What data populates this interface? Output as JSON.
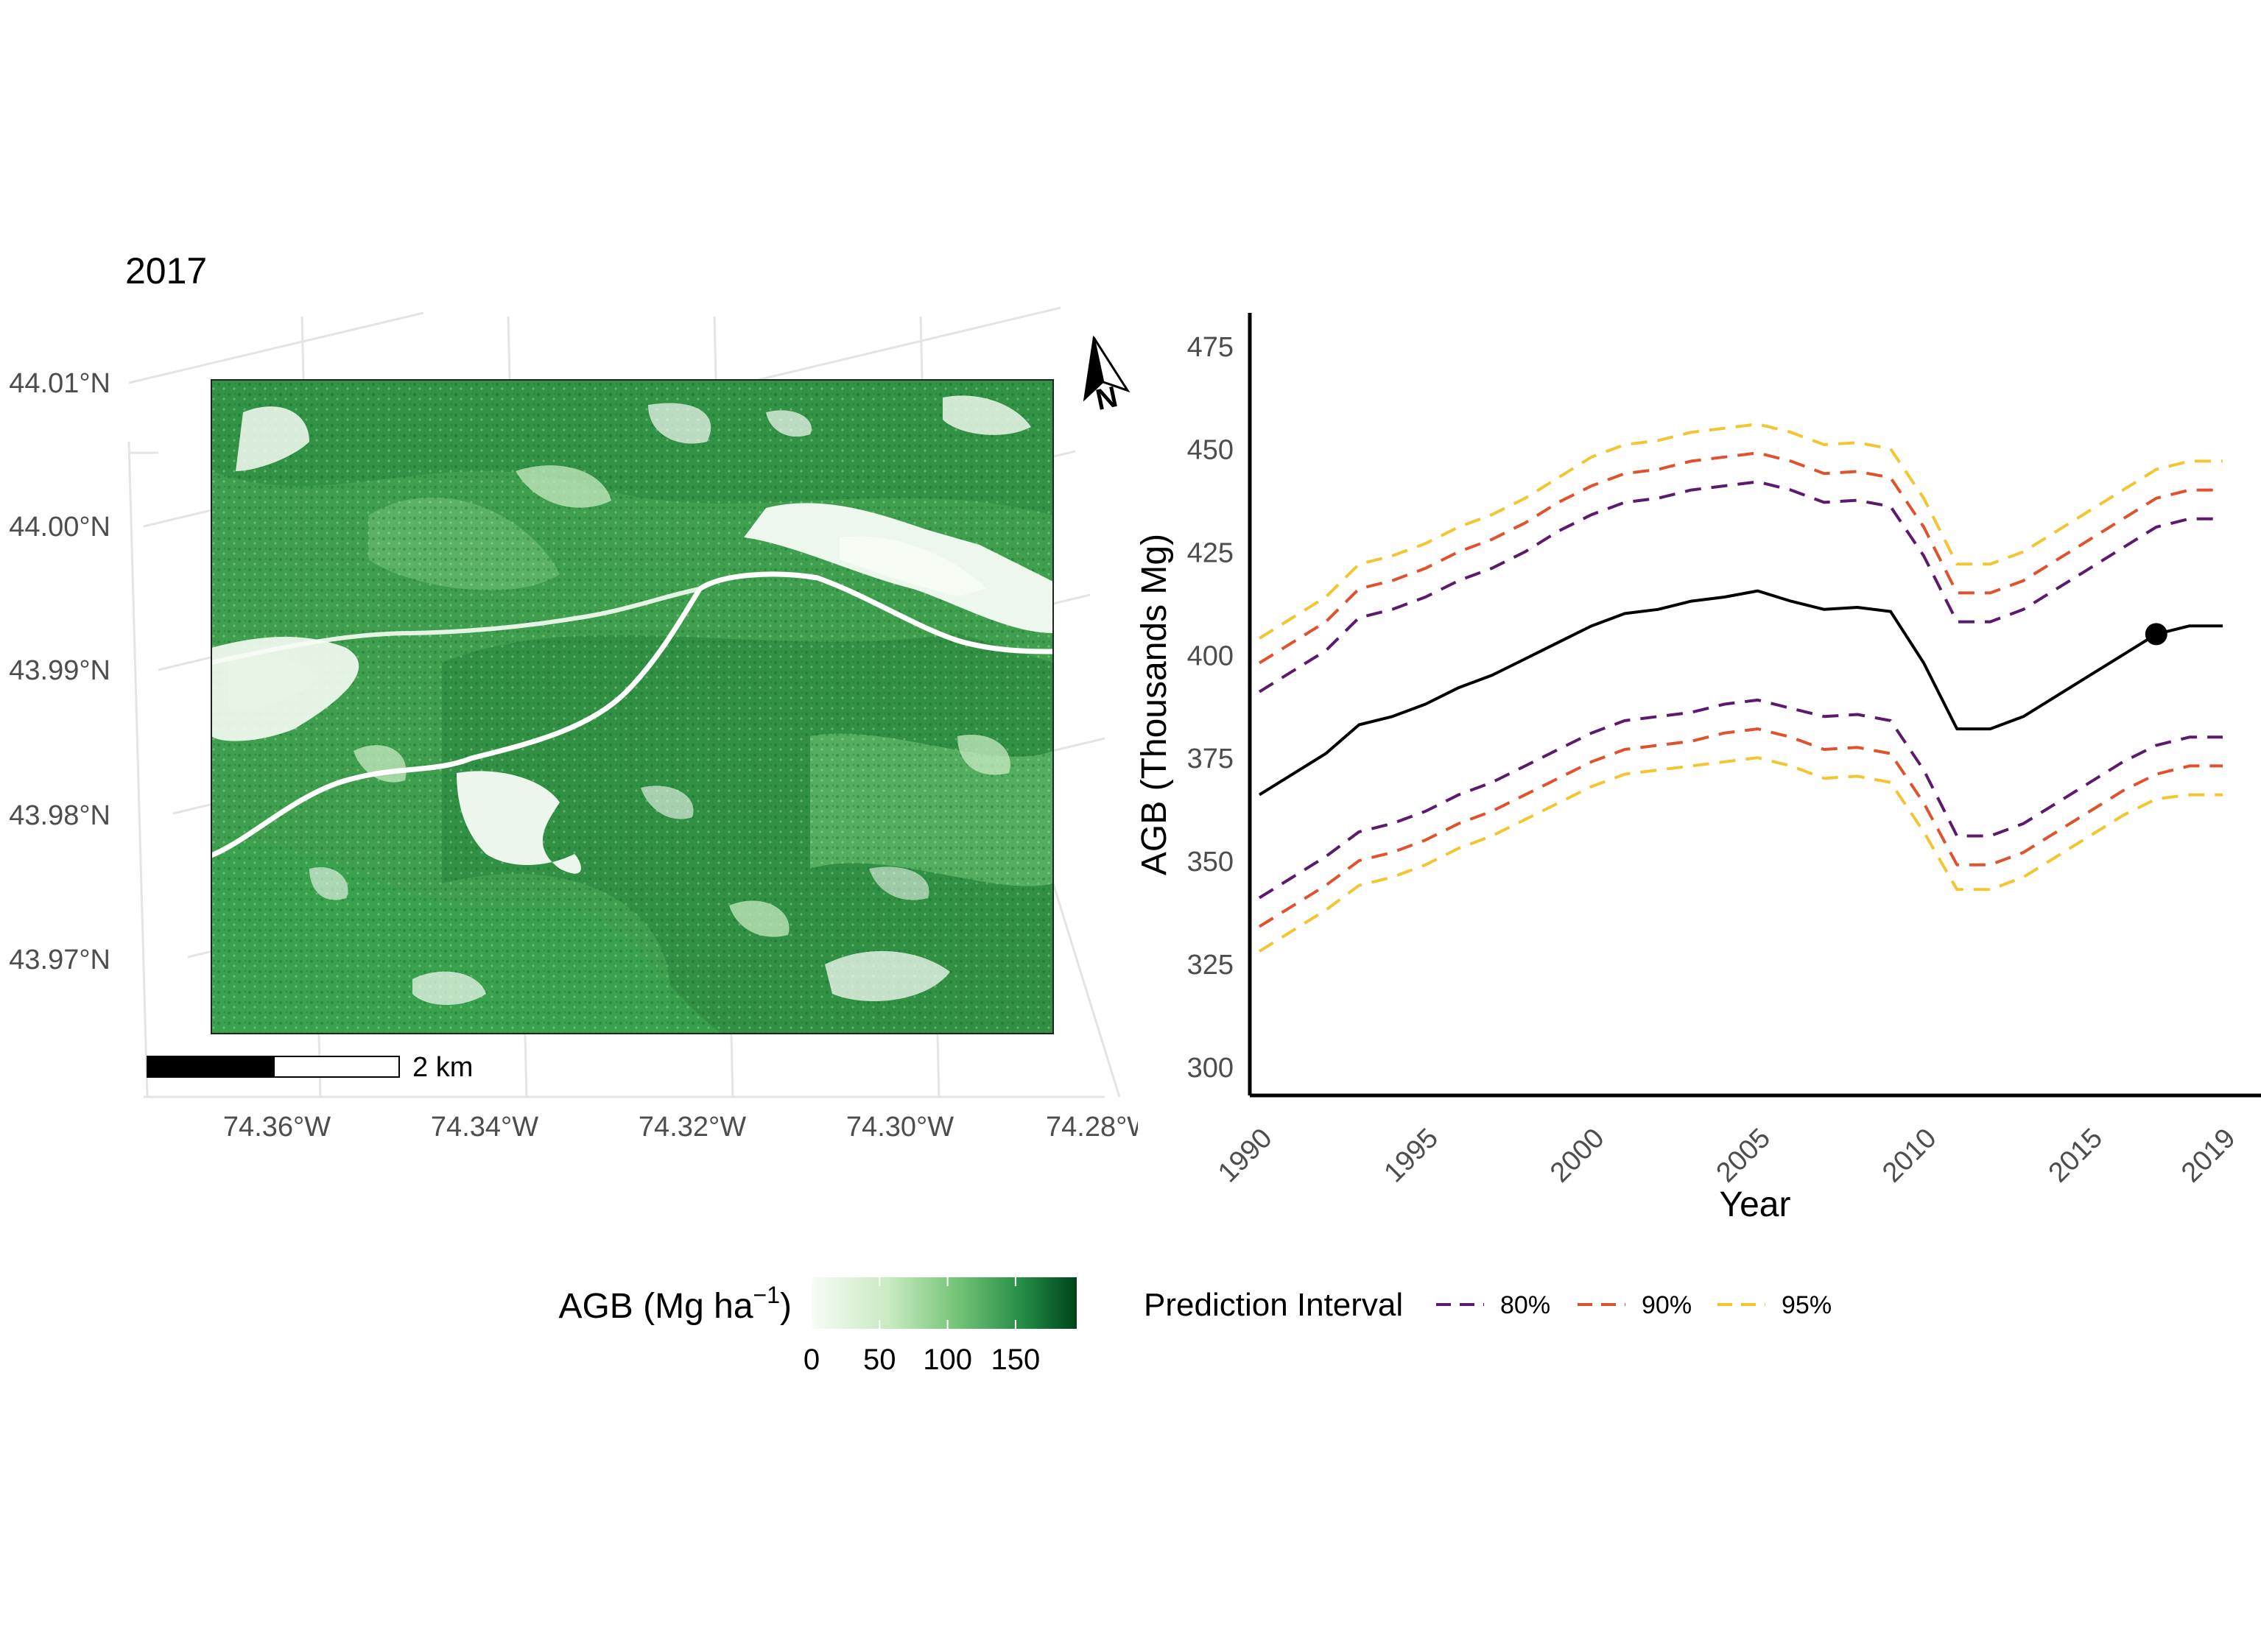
{
  "title": "2017",
  "map": {
    "lat_labels": [
      "44.01°N",
      "44.00°N",
      "43.99°N",
      "43.98°N",
      "43.97°N"
    ],
    "lon_labels": [
      "74.36°W",
      "74.34°W",
      "74.32°W",
      "74.30°W",
      "74.28°W"
    ],
    "scalebar_label": "2 km",
    "north_arrow_label": "N",
    "north_arrow_icon": "north-arrow-icon",
    "colors": {
      "low": "#f7fcf5",
      "mid": "#74c476",
      "high": "#00441b",
      "road": "#ffffff"
    }
  },
  "legend": {
    "agb_title": "AGB (Mg ha",
    "agb_superscript": "−1",
    "agb_title_close": ")",
    "agb_ticks": [
      "0",
      "50",
      "100",
      "150"
    ],
    "agb_range": [
      0,
      195
    ],
    "pi_title": "Prediction Interval",
    "pi_items": [
      {
        "label": "80%",
        "color": "#5c1a6e"
      },
      {
        "label": "90%",
        "color": "#e0522e"
      },
      {
        "label": "95%",
        "color": "#f2c531"
      }
    ]
  },
  "chart_data": {
    "type": "line",
    "xlabel": "Year",
    "ylabel": "AGB (Thousands Mg)",
    "xlim": [
      1990,
      2019
    ],
    "ylim": [
      293,
      483
    ],
    "x_ticks": [
      1990,
      1995,
      2000,
      2005,
      2010,
      2015,
      2019
    ],
    "y_ticks": [
      300,
      325,
      350,
      375,
      400,
      425,
      450,
      475
    ],
    "x": [
      1990,
      1991,
      1992,
      1993,
      1994,
      1995,
      1996,
      1997,
      1998,
      1999,
      2000,
      2001,
      2002,
      2003,
      2004,
      2005,
      2006,
      2007,
      2008,
      2009,
      2010,
      2011,
      2012,
      2013,
      2014,
      2015,
      2016,
      2017,
      2018,
      2019
    ],
    "series": [
      {
        "values": [
          366,
          371,
          376,
          383,
          385,
          388,
          392,
          395,
          399,
          403,
          407,
          410,
          411,
          413,
          414,
          415.5,
          413,
          411,
          411.5,
          410.5,
          398,
          382,
          382,
          385,
          390,
          395,
          400,
          405,
          407,
          407
        ],
        "color": "#000000"
      },
      {
        "name": "80%",
        "color": "#5c1a6e",
        "lower": [
          341,
          346,
          351,
          357,
          359,
          362,
          366,
          369,
          373,
          377,
          381,
          384,
          385,
          386,
          388,
          389,
          387,
          385,
          385.5,
          384,
          372,
          356,
          356,
          359,
          364,
          369,
          374,
          378,
          380,
          380
        ],
        "upper": [
          391,
          396,
          401,
          409,
          411,
          414,
          418,
          421,
          425,
          430,
          434,
          437,
          438,
          440,
          441,
          442,
          440,
          437,
          437.5,
          436,
          424,
          408,
          408,
          411,
          416,
          421,
          426,
          431,
          433,
          433
        ]
      },
      {
        "name": "90%",
        "color": "#e0522e",
        "lower": [
          334,
          339,
          344,
          350,
          352,
          355,
          359,
          362,
          366,
          370,
          374,
          377,
          378,
          379,
          381,
          382,
          380,
          377,
          377.5,
          376,
          364,
          349,
          349,
          352,
          357,
          362,
          367,
          371,
          373,
          373
        ],
        "upper": [
          398,
          403,
          408,
          416,
          418,
          421,
          425,
          428,
          432,
          437,
          441,
          444,
          445,
          447,
          448,
          449,
          447,
          444,
          444.5,
          443,
          431,
          415,
          415,
          418,
          423,
          428,
          433,
          438,
          440,
          440
        ]
      },
      {
        "name": "95%",
        "color": "#f2c531",
        "lower": [
          328,
          333,
          338,
          344,
          346,
          349,
          353,
          356,
          360,
          364,
          368,
          371,
          372,
          373,
          374,
          375,
          373,
          370,
          370.5,
          369,
          357,
          343,
          343,
          346,
          351,
          356,
          361,
          365,
          366,
          366
        ],
        "upper": [
          404,
          409,
          414,
          422,
          424,
          427,
          431,
          434,
          438,
          443,
          448,
          451,
          452,
          454,
          455,
          456,
          454,
          451,
          451.5,
          450,
          438,
          422,
          422,
          425,
          430,
          435,
          440,
          445,
          447,
          447
        ]
      }
    ],
    "highlight": {
      "x": 2017,
      "y": 405
    },
    "grid": false
  }
}
